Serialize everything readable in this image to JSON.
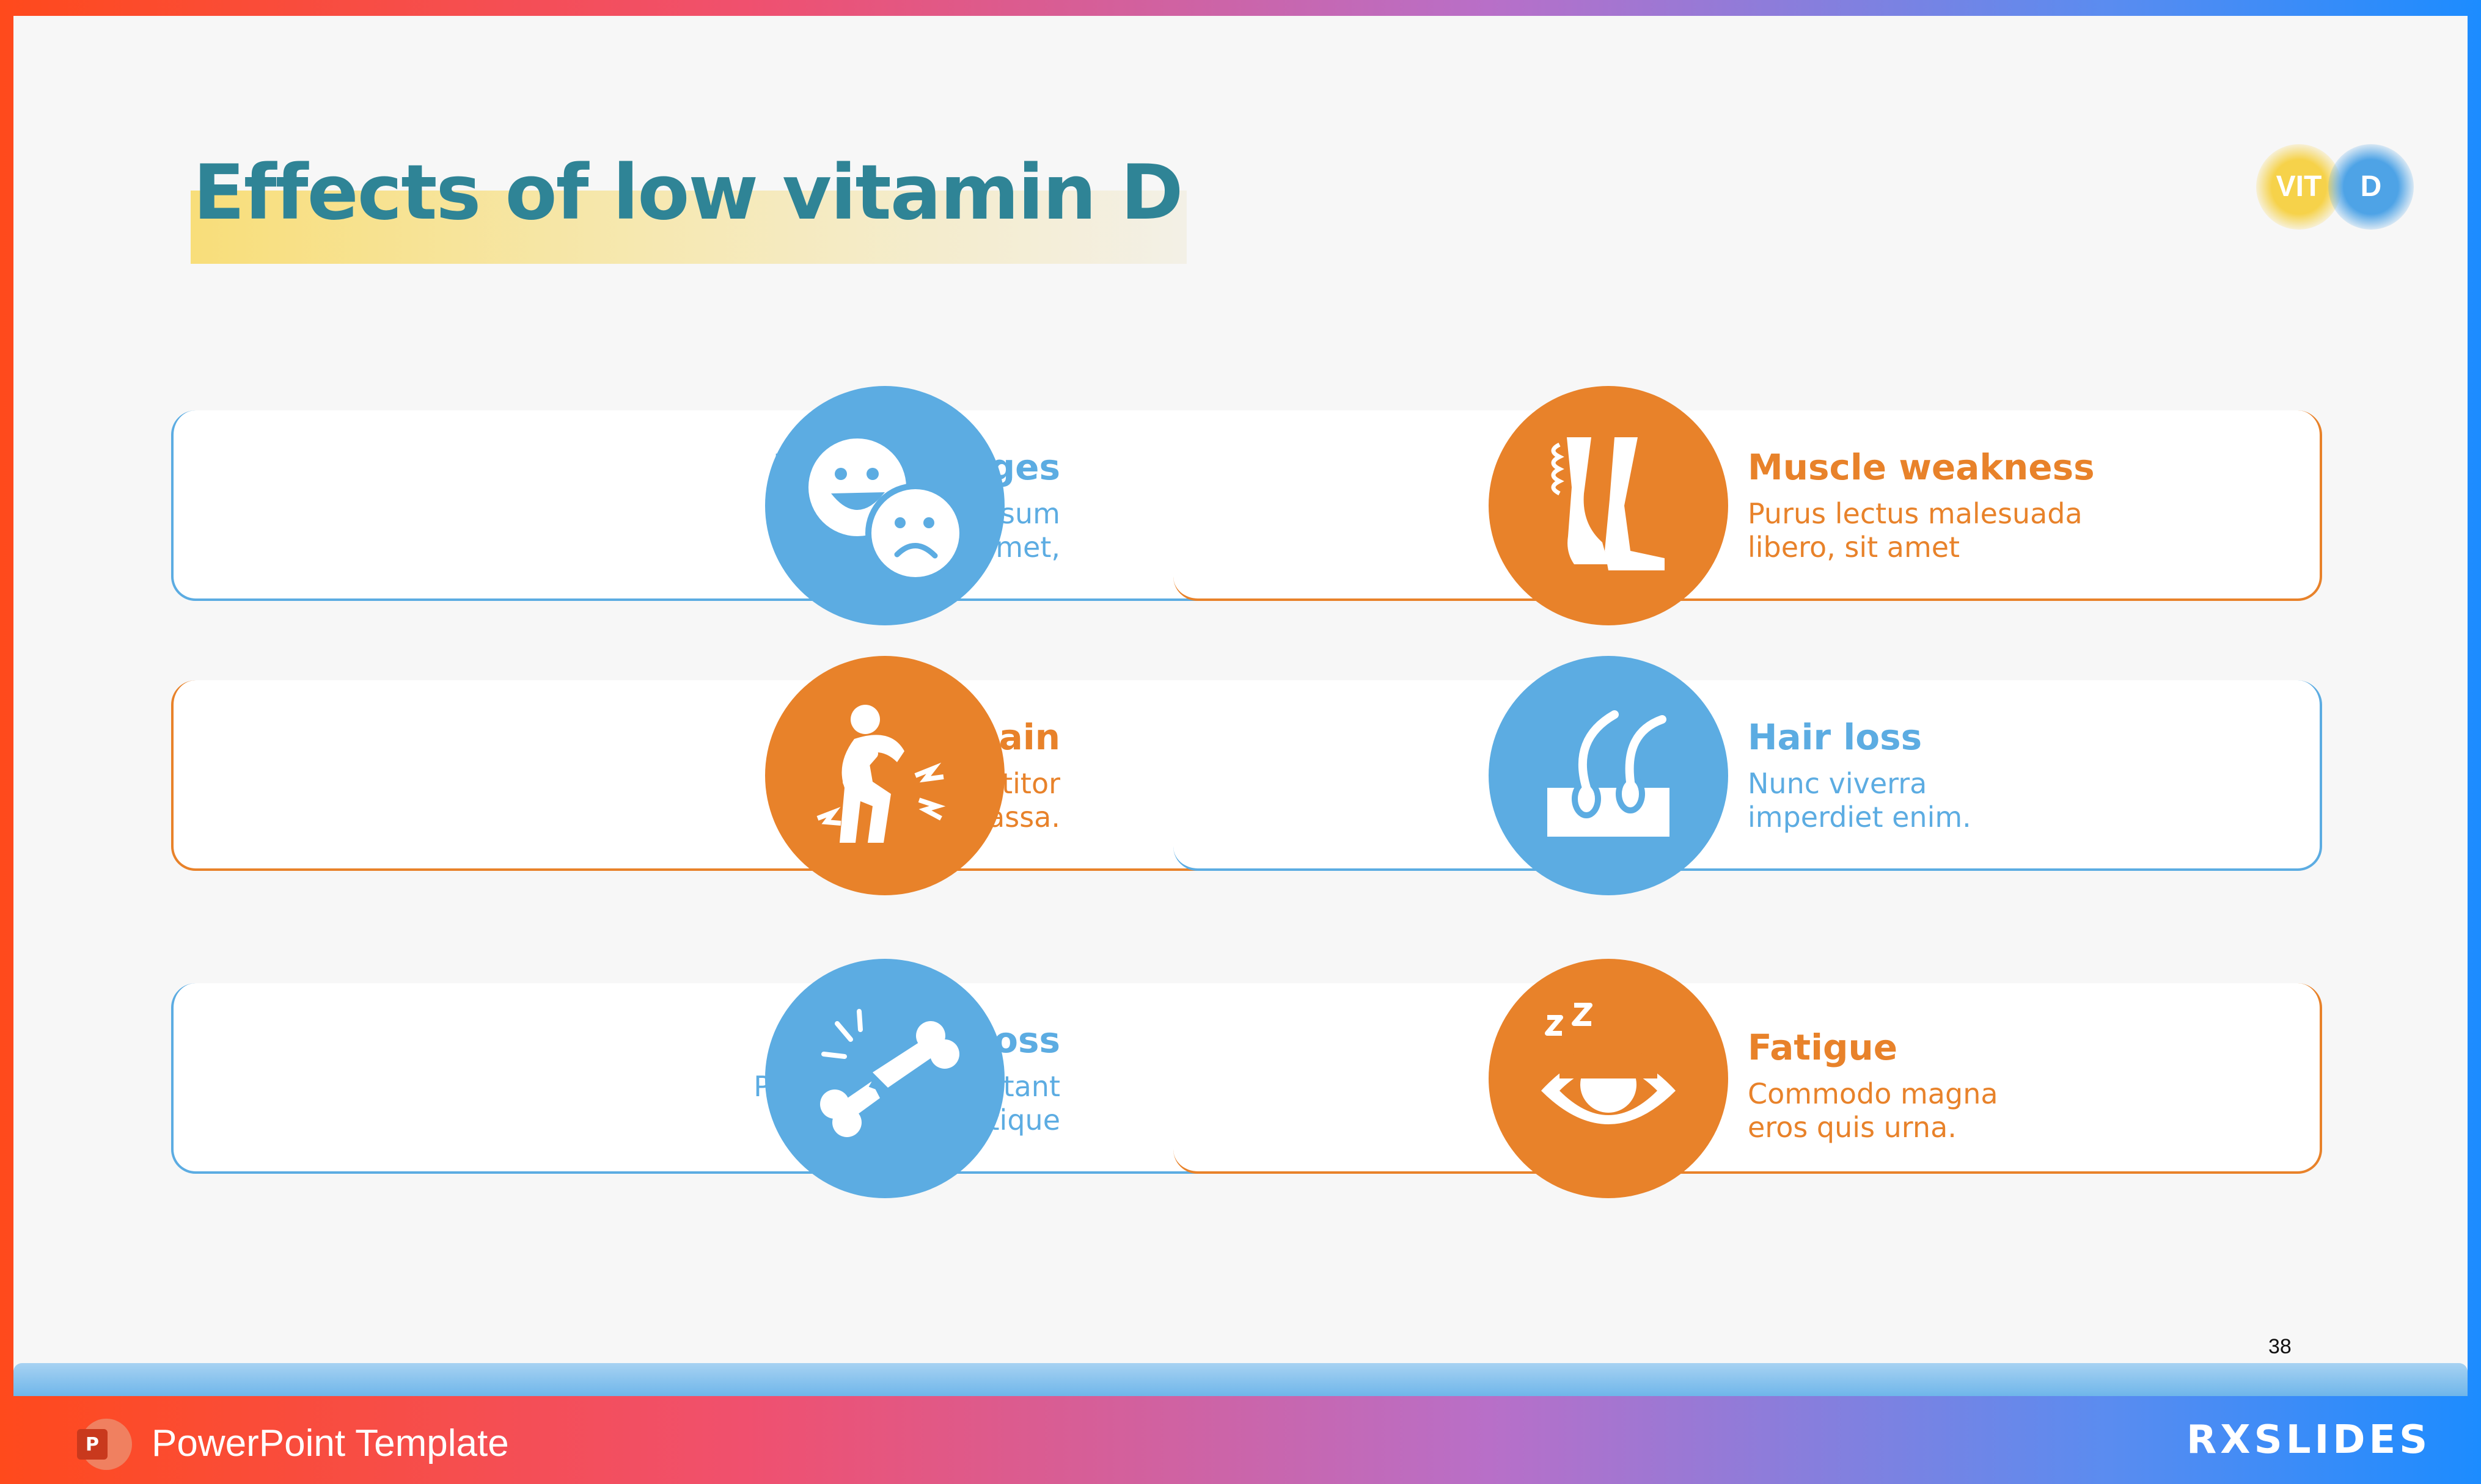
{
  "slide": {
    "title": "Effects of low vitamin D",
    "badge": {
      "left": "VIT",
      "right": "D"
    },
    "page_number": "38"
  },
  "effects": [
    {
      "title": "Mood changes",
      "line1": "Lorem ipsum",
      "line2": "dolor sit amet,",
      "color": "#5cace2",
      "icon": "mood-faces-icon"
    },
    {
      "title": "Joint pain",
      "line1": "Maecenas porttitor",
      "line2": "congue massa.",
      "color": "#e8822a",
      "icon": "back-pain-icon"
    },
    {
      "title": "Bone loss",
      "line1": "Pellentesque habitant",
      "line2": "morbi tristique",
      "color": "#5cace2",
      "icon": "broken-bone-icon"
    },
    {
      "title": "Muscle weakness",
      "line1": "Purus lectus malesuada",
      "line2": "libero, sit amet",
      "color": "#e8822a",
      "icon": "leg-muscle-icon"
    },
    {
      "title": "Hair loss",
      "line1": "Nunc viverra",
      "line2": "imperdiet enim.",
      "color": "#5cace2",
      "icon": "hair-follicle-icon"
    },
    {
      "title": "Fatigue",
      "line1": "Commodo magna",
      "line2": "eros quis urna.",
      "color": "#e8822a",
      "icon": "sleepy-eye-icon"
    }
  ],
  "footer": {
    "app_icon": "powerpoint-icon",
    "label": "PowerPoint Template",
    "brand": "RXSLIDES"
  },
  "colors": {
    "title": "#2f8496",
    "blue": "#5cace2",
    "orange": "#e8822a",
    "highlight": "#f8de7a"
  }
}
